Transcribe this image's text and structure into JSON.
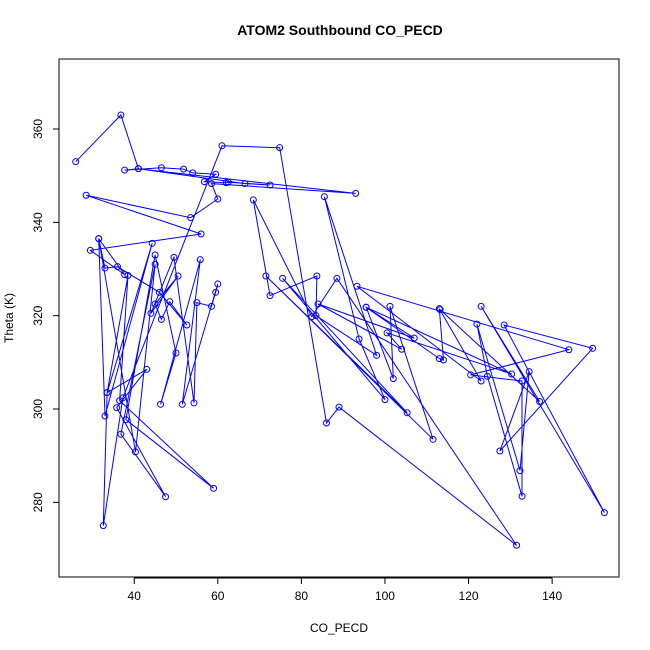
{
  "chart_data": {
    "type": "line",
    "title": "ATOM2 Southbound CO_PECD",
    "xlabel": "CO_PECD",
    "ylabel": "Theta (K)",
    "xlim": [
      22,
      156
    ],
    "ylim": [
      264,
      375
    ],
    "xticks": [
      40,
      60,
      80,
      100,
      120,
      140
    ],
    "yticks": [
      280,
      300,
      320,
      340,
      360
    ],
    "grid": false,
    "legend": "none",
    "series_color": "#0000ff",
    "marker": "open-circle",
    "series": [
      {
        "points": [
          [
            26.0,
            353.0
          ],
          [
            36.8,
            363.0
          ],
          [
            41.0,
            351.5
          ],
          [
            37.7,
            351.2
          ],
          [
            46.5,
            351.7
          ],
          [
            51.8,
            351.4
          ],
          [
            54.0,
            350.6
          ],
          [
            59.5,
            350.3
          ],
          [
            56.8,
            348.7
          ],
          [
            62.0,
            348.5
          ],
          [
            62.5,
            348.6
          ],
          [
            72.5,
            348.0
          ],
          [
            66.5,
            348.3
          ],
          [
            41.0,
            351.5
          ],
          [
            93.0,
            346.2
          ],
          [
            58.5,
            348.3
          ],
          [
            60.0,
            345.0
          ],
          [
            53.5,
            341.0
          ],
          [
            28.5,
            345.8
          ],
          [
            56.0,
            337.5
          ],
          [
            29.5,
            334.0
          ],
          [
            37.7,
            328.8
          ],
          [
            31.5,
            336.5
          ],
          [
            33.0,
            330.2
          ],
          [
            36.0,
            330.5
          ],
          [
            46.0,
            325.0
          ],
          [
            52.6,
            318.0
          ],
          [
            48.5,
            323.0
          ],
          [
            46.5,
            319.2
          ],
          [
            45.0,
            322.5
          ],
          [
            50.5,
            328.5
          ],
          [
            44.0,
            320.5
          ],
          [
            49.5,
            332.5
          ],
          [
            54.3,
            301.3
          ],
          [
            55.0,
            322.8
          ],
          [
            58.5,
            322.0
          ],
          [
            59.5,
            325.0
          ],
          [
            60.0,
            326.8
          ],
          [
            51.5,
            301.0
          ],
          [
            55.8,
            332.0
          ],
          [
            46.3,
            301.0
          ],
          [
            50.0,
            312.0
          ],
          [
            45.0,
            333.0
          ],
          [
            38.0,
            297.7
          ],
          [
            59.0,
            283.0
          ],
          [
            36.5,
            301.8
          ],
          [
            38.5,
            328.6
          ],
          [
            33.5,
            303.5
          ],
          [
            44.3,
            335.5
          ],
          [
            33.0,
            298.5
          ],
          [
            31.5,
            336.5
          ],
          [
            40.3,
            290.8
          ],
          [
            45.0,
            331.0
          ],
          [
            36.8,
            294.6
          ],
          [
            47.5,
            281.2
          ],
          [
            35.8,
            300.3
          ],
          [
            43.0,
            308.5
          ],
          [
            33.5,
            303.5
          ],
          [
            32.6,
            275.0
          ],
          [
            37.3,
            302.4
          ],
          [
            61.0,
            356.4
          ],
          [
            74.8,
            356.0
          ],
          [
            86.0,
            297.0
          ],
          [
            89.0,
            300.4
          ],
          [
            131.5,
            270.8
          ],
          [
            88.5,
            328.0
          ],
          [
            82.5,
            319.8
          ],
          [
            68.5,
            344.8
          ],
          [
            72.5,
            324.3
          ],
          [
            83.7,
            328.5
          ],
          [
            83.5,
            320.0
          ],
          [
            98.0,
            311.5
          ],
          [
            85.5,
            345.5
          ],
          [
            93.8,
            315.0
          ],
          [
            100.0,
            302.0
          ],
          [
            75.5,
            328.0
          ],
          [
            105.3,
            299.2
          ],
          [
            71.5,
            328.5
          ],
          [
            111.5,
            293.5
          ],
          [
            101.2,
            322.0
          ],
          [
            102.0,
            306.5
          ],
          [
            95.5,
            321.8
          ],
          [
            107.0,
            315.2
          ],
          [
            84.0,
            322.5
          ],
          [
            104.0,
            312.8
          ],
          [
            100.5,
            316.3
          ],
          [
            130.3,
            307.5
          ],
          [
            95.5,
            321.8
          ],
          [
            113.0,
            310.8
          ],
          [
            114.0,
            310.5
          ],
          [
            113.0,
            321.5
          ],
          [
            123.0,
            306.0
          ],
          [
            93.3,
            326.3
          ],
          [
            144.0,
            312.7
          ],
          [
            120.5,
            307.3
          ],
          [
            132.8,
            306.0
          ],
          [
            132.8,
            281.3
          ],
          [
            124.5,
            307.0
          ],
          [
            122.0,
            318.2
          ],
          [
            132.3,
            286.8
          ],
          [
            134.5,
            308.0
          ],
          [
            127.5,
            291.0
          ],
          [
            149.7,
            313.0
          ],
          [
            128.5,
            318.0
          ],
          [
            152.5,
            277.8
          ],
          [
            123.0,
            322.0
          ],
          [
            137.0,
            301.6
          ],
          [
            113.2,
            321.3
          ]
        ]
      }
    ]
  }
}
